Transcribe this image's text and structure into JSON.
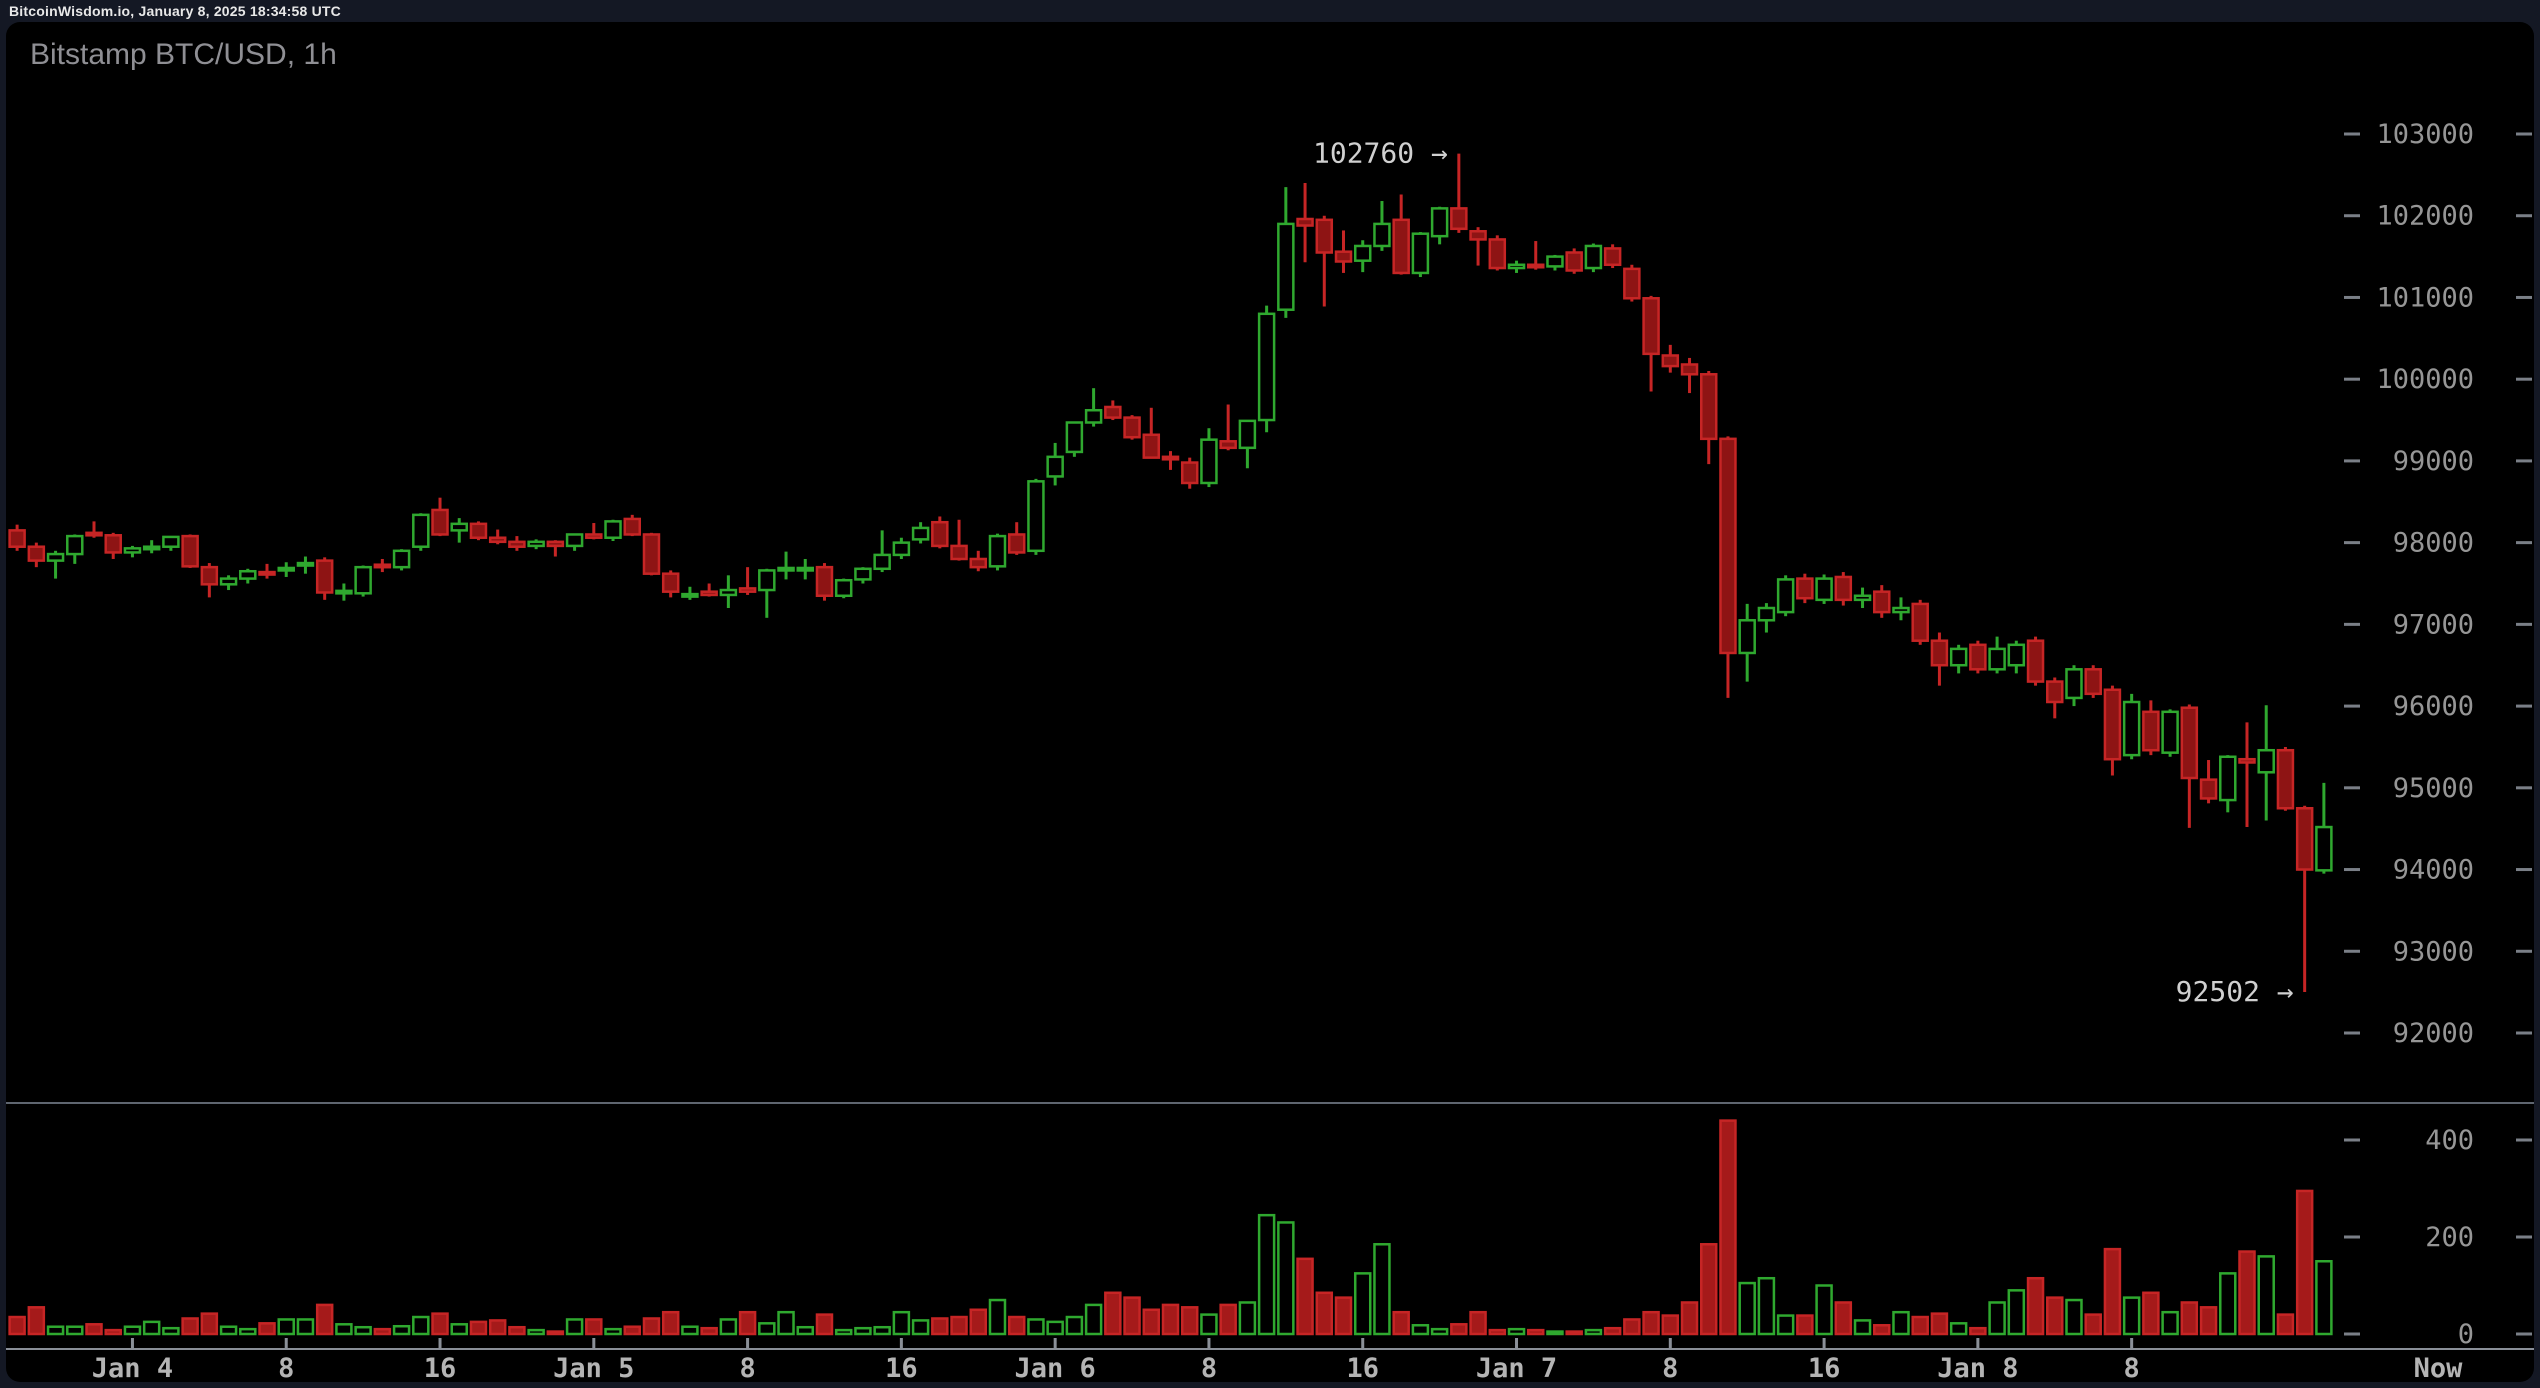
{
  "top_bar": {
    "status_text": "BitcoinWisdom.io, January 8, 2025 18:34:58 UTC"
  },
  "chart": {
    "title": "Bitstamp BTC/USD, 1h",
    "now_label": "Now",
    "annotations": {
      "high": {
        "text": "102760 →",
        "price": 102760,
        "candle_index": 75
      },
      "low": {
        "text": "92502 →",
        "price": 92502,
        "candle_index": 119
      }
    },
    "colors": {
      "page_bg": "#141824",
      "panel_bg": "#000000",
      "up": "#2fa82f",
      "down": "#c62525",
      "down_body_fill": "#8e1414",
      "volume_down_fill": "#a51a1a",
      "axis_label": "#969696",
      "time_label": "#b4b4b4",
      "tick": "#7a7f87",
      "divider_line": "#5f6670",
      "axis_line": "#8a8f98",
      "annotation_text": "#d0d0d0",
      "title_text": "#8f8f94",
      "topbar_text": "#e8e8e8"
    }
  },
  "chart_data": {
    "type": "candlestick+volume",
    "title": "Bitstamp BTC/USD, 1h",
    "exchange": "Bitstamp",
    "pair": "BTC/USD",
    "interval": "1h",
    "start_time": "Jan 3 18:00 UTC",
    "end_time": "Jan 8 18:34 UTC (current candle)",
    "price_axis": {
      "ticks": [
        103000,
        102000,
        101000,
        100000,
        99000,
        98000,
        97000,
        96000,
        95000,
        94000,
        93000,
        92000
      ],
      "side": "right"
    },
    "volume_axis": {
      "ticks": [
        400,
        200,
        0
      ],
      "side": "right"
    },
    "time_axis": [
      {
        "label": "Jan 4",
        "index": 6
      },
      {
        "label": "8",
        "index": 14
      },
      {
        "label": "16",
        "index": 22
      },
      {
        "label": "Jan 5",
        "index": 30
      },
      {
        "label": "8",
        "index": 38
      },
      {
        "label": "16",
        "index": 46
      },
      {
        "label": "Jan 6",
        "index": 54
      },
      {
        "label": "8",
        "index": 62
      },
      {
        "label": "16",
        "index": 70
      },
      {
        "label": "Jan 7",
        "index": 78
      },
      {
        "label": "8",
        "index": 86
      },
      {
        "label": "16",
        "index": 94
      },
      {
        "label": "Jan 8",
        "index": 102
      },
      {
        "label": "8",
        "index": 110
      }
    ],
    "high_marker": 102760,
    "low_marker": 92502,
    "candles_format": [
      "open",
      "high",
      "low",
      "close",
      "volume"
    ],
    "candles": [
      [
        98150,
        98220,
        97900,
        97950,
        35
      ],
      [
        97950,
        98000,
        97700,
        97780,
        55
      ],
      [
        97780,
        97900,
        97560,
        97860,
        15
      ],
      [
        97860,
        98100,
        97740,
        98080,
        15
      ],
      [
        98120,
        98260,
        98060,
        98090,
        20
      ],
      [
        98090,
        98120,
        97800,
        97880,
        8
      ],
      [
        97880,
        97960,
        97820,
        97930,
        15
      ],
      [
        97930,
        98030,
        97870,
        97950,
        25
      ],
      [
        97950,
        98080,
        97900,
        98070,
        12
      ],
      [
        98080,
        98100,
        97690,
        97710,
        32
      ],
      [
        97700,
        97750,
        97330,
        97490,
        42
      ],
      [
        97490,
        97600,
        97420,
        97560,
        15
      ],
      [
        97560,
        97680,
        97500,
        97650,
        10
      ],
      [
        97640,
        97740,
        97560,
        97620,
        22
      ],
      [
        97660,
        97760,
        97580,
        97690,
        30
      ],
      [
        97720,
        97830,
        97620,
        97750,
        30
      ],
      [
        97780,
        97820,
        97300,
        97390,
        60
      ],
      [
        97390,
        97500,
        97290,
        97410,
        20
      ],
      [
        97380,
        97720,
        97340,
        97700,
        14
      ],
      [
        97730,
        97800,
        97640,
        97700,
        10
      ],
      [
        97700,
        97920,
        97660,
        97900,
        16
      ],
      [
        97950,
        98360,
        97900,
        98340,
        35
      ],
      [
        98400,
        98550,
        98080,
        98100,
        42
      ],
      [
        98150,
        98300,
        98000,
        98230,
        20
      ],
      [
        98230,
        98260,
        98030,
        98060,
        25
      ],
      [
        98060,
        98160,
        97980,
        98010,
        28
      ],
      [
        98010,
        98080,
        97900,
        97950,
        14
      ],
      [
        97960,
        98040,
        97920,
        98010,
        8
      ],
      [
        98010,
        98030,
        97830,
        97960,
        5
      ],
      [
        97960,
        98110,
        97900,
        98100,
        30
      ],
      [
        98100,
        98240,
        98040,
        98060,
        30
      ],
      [
        98060,
        98280,
        98020,
        98260,
        10
      ],
      [
        98290,
        98340,
        98080,
        98100,
        15
      ],
      [
        98100,
        98120,
        97600,
        97620,
        32
      ],
      [
        97620,
        97660,
        97330,
        97400,
        45
      ],
      [
        97360,
        97460,
        97300,
        97370,
        15
      ],
      [
        97400,
        97500,
        97340,
        97360,
        12
      ],
      [
        97360,
        97600,
        97200,
        97420,
        30
      ],
      [
        97440,
        97700,
        97360,
        97400,
        45
      ],
      [
        97420,
        97680,
        97080,
        97660,
        22
      ],
      [
        97660,
        97890,
        97550,
        97690,
        45
      ],
      [
        97680,
        97800,
        97550,
        97690,
        14
      ],
      [
        97700,
        97750,
        97290,
        97350,
        40
      ],
      [
        97350,
        97560,
        97320,
        97540,
        8
      ],
      [
        97550,
        97700,
        97500,
        97680,
        12
      ],
      [
        97680,
        98150,
        97640,
        97850,
        14
      ],
      [
        97850,
        98060,
        97800,
        98000,
        45
      ],
      [
        98040,
        98250,
        97990,
        98180,
        28
      ],
      [
        98250,
        98320,
        97930,
        97960,
        32
      ],
      [
        97960,
        98280,
        97780,
        97800,
        35
      ],
      [
        97800,
        97900,
        97650,
        97700,
        50
      ],
      [
        97710,
        98110,
        97660,
        98080,
        70
      ],
      [
        98100,
        98250,
        97850,
        97880,
        35
      ],
      [
        97900,
        98780,
        97850,
        98750,
        30
      ],
      [
        98810,
        99220,
        98700,
        99050,
        25
      ],
      [
        99110,
        99480,
        99050,
        99470,
        35
      ],
      [
        99470,
        99890,
        99420,
        99620,
        60
      ],
      [
        99660,
        99740,
        99500,
        99530,
        85
      ],
      [
        99530,
        99560,
        99260,
        99290,
        75
      ],
      [
        99320,
        99650,
        99030,
        99040,
        50
      ],
      [
        99050,
        99120,
        98890,
        99020,
        60
      ],
      [
        98980,
        99040,
        98660,
        98730,
        55
      ],
      [
        98730,
        99400,
        98680,
        99260,
        40
      ],
      [
        99240,
        99690,
        99130,
        99160,
        60
      ],
      [
        99160,
        99500,
        98910,
        99490,
        65
      ],
      [
        99500,
        100900,
        99350,
        100800,
        245
      ],
      [
        100850,
        102350,
        100750,
        101900,
        230
      ],
      [
        101960,
        102400,
        101430,
        101880,
        155
      ],
      [
        101950,
        102000,
        100890,
        101550,
        85
      ],
      [
        101560,
        101820,
        101300,
        101440,
        75
      ],
      [
        101450,
        101700,
        101310,
        101630,
        125
      ],
      [
        101630,
        102180,
        101570,
        101900,
        185
      ],
      [
        101950,
        102260,
        101280,
        101300,
        45
      ],
      [
        101300,
        101800,
        101250,
        101780,
        18
      ],
      [
        101750,
        102110,
        101650,
        102090,
        10
      ],
      [
        102090,
        102760,
        101790,
        101840,
        20
      ],
      [
        101810,
        101860,
        101390,
        101710,
        45
      ],
      [
        101710,
        101760,
        101330,
        101360,
        8
      ],
      [
        101360,
        101450,
        101300,
        101400,
        10
      ],
      [
        101400,
        101690,
        101340,
        101380,
        8
      ],
      [
        101380,
        101520,
        101330,
        101500,
        5
      ],
      [
        101550,
        101600,
        101290,
        101330,
        5
      ],
      [
        101360,
        101660,
        101310,
        101630,
        8
      ],
      [
        101600,
        101650,
        101360,
        101400,
        12
      ],
      [
        101350,
        101400,
        100950,
        100990,
        30
      ],
      [
        100990,
        101020,
        99850,
        100310,
        45
      ],
      [
        100290,
        100420,
        100080,
        100160,
        38
      ],
      [
        100180,
        100260,
        99830,
        100060,
        65
      ],
      [
        100060,
        100100,
        98960,
        99270,
        185
      ],
      [
        99270,
        99300,
        96100,
        96650,
        440
      ],
      [
        96650,
        97250,
        96300,
        97050,
        105
      ],
      [
        97050,
        97260,
        96900,
        97200,
        115
      ],
      [
        97150,
        97600,
        97100,
        97550,
        38
      ],
      [
        97560,
        97620,
        97260,
        97320,
        38
      ],
      [
        97300,
        97610,
        97250,
        97560,
        100
      ],
      [
        97580,
        97640,
        97230,
        97300,
        65
      ],
      [
        97300,
        97450,
        97200,
        97350,
        28
      ],
      [
        97400,
        97480,
        97080,
        97150,
        18
      ],
      [
        97150,
        97330,
        97050,
        97200,
        45
      ],
      [
        97250,
        97300,
        96750,
        96800,
        35
      ],
      [
        96800,
        96900,
        96250,
        96500,
        42
      ],
      [
        96500,
        96750,
        96400,
        96700,
        22
      ],
      [
        96750,
        96800,
        96400,
        96450,
        12
      ],
      [
        96450,
        96850,
        96400,
        96700,
        65
      ],
      [
        96500,
        96800,
        96400,
        96750,
        90
      ],
      [
        96800,
        96850,
        96250,
        96300,
        115
      ],
      [
        96300,
        96350,
        95850,
        96050,
        75
      ],
      [
        96100,
        96500,
        96000,
        96450,
        70
      ],
      [
        96450,
        96500,
        96100,
        96150,
        40
      ],
      [
        96200,
        96250,
        95150,
        95350,
        175
      ],
      [
        95400,
        96150,
        95350,
        96050,
        75
      ],
      [
        95930,
        96070,
        95400,
        95460,
        85
      ],
      [
        95430,
        95960,
        95380,
        95930,
        45
      ],
      [
        95980,
        96020,
        94510,
        95120,
        65
      ],
      [
        95100,
        95340,
        94810,
        94870,
        55
      ],
      [
        94850,
        95400,
        94700,
        95380,
        125
      ],
      [
        95350,
        95800,
        94520,
        95310,
        170
      ],
      [
        95190,
        96010,
        94600,
        95460,
        160
      ],
      [
        95460,
        95500,
        94720,
        94750,
        40
      ],
      [
        94750,
        94780,
        92502,
        94000,
        295
      ],
      [
        93990,
        95060,
        93950,
        94520,
        150
      ]
    ],
    "layout_hints": {
      "grid": "off",
      "legend": "none",
      "price_range_visible": [
        92000,
        103000
      ],
      "volume_range_visible": [
        0,
        440
      ]
    }
  }
}
